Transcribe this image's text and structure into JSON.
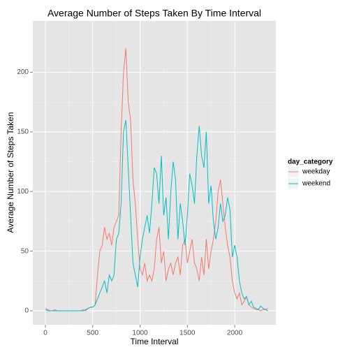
{
  "chart_data": {
    "type": "line",
    "title": "Average Number of Steps Taken By Time Interval",
    "x_label": "Time Interval",
    "y_label": "Average Number of Steps Taken",
    "legend_title": "day_category",
    "legend_position": "right",
    "grid": true,
    "xlim": [
      -133,
      2435
    ],
    "xticks": [
      0,
      500,
      1000,
      1500,
      2000
    ],
    "ylim": [
      -11.7,
      243
    ],
    "yticks": [
      0,
      50,
      100,
      150,
      200
    ],
    "x": [
      0,
      25,
      50,
      75,
      100,
      125,
      150,
      175,
      200,
      225,
      250,
      275,
      300,
      325,
      350,
      375,
      400,
      425,
      450,
      475,
      500,
      525,
      550,
      575,
      600,
      625,
      650,
      675,
      700,
      725,
      750,
      775,
      800,
      825,
      850,
      875,
      900,
      925,
      950,
      975,
      1000,
      1025,
      1050,
      1075,
      1100,
      1125,
      1150,
      1175,
      1200,
      1225,
      1250,
      1275,
      1300,
      1325,
      1350,
      1375,
      1400,
      1425,
      1450,
      1475,
      1500,
      1525,
      1550,
      1575,
      1600,
      1625,
      1650,
      1675,
      1700,
      1725,
      1750,
      1775,
      1800,
      1825,
      1850,
      1875,
      1900,
      1925,
      1950,
      1975,
      2000,
      2025,
      2050,
      2075,
      2100,
      2125,
      2150,
      2175,
      2200,
      2225,
      2250,
      2275,
      2300,
      2325,
      2350
    ],
    "series": [
      {
        "name": "weekday",
        "color": "#F8766D",
        "values": [
          2,
          1,
          0,
          0,
          1,
          0,
          0,
          0,
          0,
          0,
          0,
          0,
          0,
          0,
          0,
          0,
          1,
          0,
          2,
          3,
          3,
          5,
          30,
          50,
          55,
          70,
          60,
          65,
          55,
          70,
          75,
          80,
          150,
          200,
          220,
          175,
          160,
          110,
          90,
          60,
          35,
          30,
          40,
          25,
          30,
          25,
          35,
          60,
          70,
          40,
          50,
          25,
          35,
          40,
          30,
          40,
          45,
          30,
          55,
          60,
          40,
          50,
          60,
          40,
          35,
          25,
          45,
          30,
          60,
          35,
          50,
          60,
          75,
          100,
          110,
          90,
          70,
          55,
          45,
          25,
          15,
          10,
          15,
          5,
          8,
          12,
          5,
          3,
          2,
          1,
          1,
          0,
          1,
          1,
          2
        ]
      },
      {
        "name": "weekend",
        "color": "#00BFC4",
        "values": [
          1,
          0,
          0,
          0,
          0,
          0,
          0,
          0,
          0,
          0,
          0,
          0,
          0,
          0,
          0,
          0,
          0,
          1,
          2,
          3,
          3,
          5,
          10,
          15,
          20,
          25,
          15,
          30,
          25,
          30,
          60,
          65,
          90,
          150,
          160,
          120,
          80,
          40,
          30,
          20,
          45,
          60,
          70,
          80,
          65,
          90,
          120,
          115,
          90,
          130,
          80,
          95,
          60,
          100,
          125,
          110,
          60,
          90,
          75,
          55,
          80,
          115,
          105,
          90,
          130,
          155,
          130,
          120,
          150,
          90,
          105,
          75,
          60,
          70,
          90,
          75,
          80,
          95,
          85,
          45,
          55,
          45,
          25,
          15,
          10,
          12,
          5,
          8,
          3,
          2,
          1,
          4,
          2,
          1,
          0
        ]
      }
    ]
  }
}
